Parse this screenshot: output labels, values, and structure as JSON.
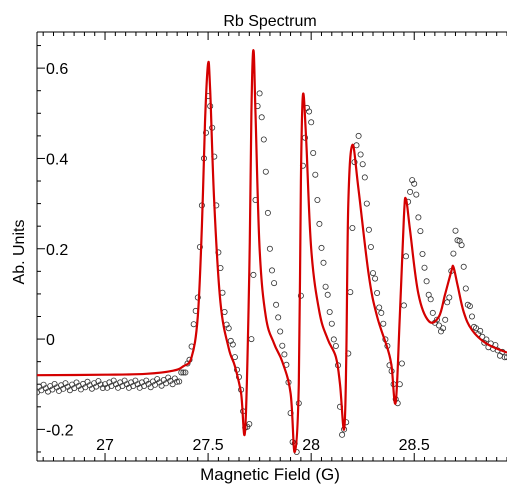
{
  "chart_data": {
    "type": "line",
    "title": "Rb Spectrum",
    "xlabel": "Magnetic Field (G)",
    "ylabel": "Ab. Units",
    "xlim": [
      26.67,
      28.95
    ],
    "ylim": [
      -0.27,
      0.68
    ],
    "x_ticks": [
      27,
      27.5,
      28,
      28.5
    ],
    "y_ticks": [
      -0.2,
      0,
      0.2,
      0.4,
      0.6
    ],
    "grid": false,
    "colors": {
      "fit": "#d40000",
      "data": "#333333"
    },
    "series": [
      {
        "style": "line",
        "color": "#d40000",
        "x": [
          26.67,
          27.0,
          27.2,
          27.33,
          27.38,
          27.42,
          27.45,
          27.47,
          27.485,
          27.5,
          27.51,
          27.53,
          27.56,
          27.6,
          27.63,
          27.66,
          27.68,
          27.7,
          27.71,
          27.72,
          27.73,
          27.75,
          27.78,
          27.82,
          27.86,
          27.9,
          27.92,
          27.94,
          27.95,
          27.96,
          27.975,
          28.0,
          28.04,
          28.08,
          28.12,
          28.14,
          28.16,
          28.17,
          28.18,
          28.2,
          28.23,
          28.28,
          28.32,
          28.37,
          28.39,
          28.41,
          28.43,
          28.45,
          28.46,
          28.48,
          28.52,
          28.57,
          28.62,
          28.65,
          28.68,
          28.69,
          28.71,
          28.74,
          28.78,
          28.85,
          28.95
        ],
        "y": [
          -0.08,
          -0.079,
          -0.077,
          -0.07,
          -0.06,
          -0.04,
          0.05,
          0.25,
          0.48,
          0.61,
          0.55,
          0.3,
          0.08,
          -0.02,
          -0.06,
          -0.12,
          -0.2,
          0.15,
          0.5,
          0.64,
          0.5,
          0.2,
          0.05,
          -0.01,
          -0.05,
          -0.12,
          -0.25,
          -0.1,
          0.35,
          0.54,
          0.45,
          0.2,
          0.06,
          0.0,
          -0.04,
          -0.1,
          -0.2,
          -0.05,
          0.3,
          0.43,
          0.33,
          0.14,
          0.05,
          -0.02,
          -0.06,
          -0.14,
          0.05,
          0.27,
          0.31,
          0.24,
          0.1,
          0.04,
          0.05,
          0.1,
          0.15,
          0.16,
          0.12,
          0.06,
          0.02,
          -0.01,
          -0.03
        ]
      },
      {
        "style": "markers",
        "marker": "open-circle",
        "color": "#333333",
        "x": [
          26.67,
          27.0,
          27.2,
          27.36,
          27.41,
          27.45,
          27.48,
          27.5,
          27.51,
          27.53,
          27.55,
          27.58,
          27.62,
          27.65,
          27.68,
          27.7,
          27.71,
          27.73,
          27.74,
          27.75,
          27.77,
          27.8,
          27.84,
          27.87,
          27.89,
          27.91,
          27.93,
          27.94,
          27.95,
          27.96,
          27.98,
          28.0,
          28.03,
          28.07,
          28.1,
          28.13,
          28.14,
          28.15,
          28.17,
          28.19,
          28.21,
          28.23,
          28.26,
          28.3,
          28.35,
          28.38,
          28.4,
          28.42,
          28.44,
          28.47,
          28.49,
          28.51,
          28.55,
          28.6,
          28.64,
          28.67,
          28.7,
          28.73,
          28.76,
          28.8,
          28.86,
          28.95
        ],
        "y": [
          -0.11,
          -0.1,
          -0.1,
          -0.09,
          -0.05,
          0.1,
          0.4,
          0.53,
          0.52,
          0.4,
          0.2,
          0.06,
          -0.02,
          -0.08,
          -0.2,
          -0.18,
          0.0,
          0.3,
          0.52,
          0.54,
          0.45,
          0.2,
          0.04,
          -0.03,
          -0.1,
          -0.22,
          -0.25,
          -0.15,
          0.1,
          0.38,
          0.52,
          0.48,
          0.3,
          0.12,
          0.03,
          -0.05,
          -0.15,
          -0.22,
          -0.18,
          0.1,
          0.4,
          0.45,
          0.35,
          0.15,
          0.03,
          -0.05,
          -0.1,
          -0.15,
          -0.05,
          0.3,
          0.36,
          0.32,
          0.15,
          0.04,
          0.02,
          0.1,
          0.24,
          0.2,
          0.08,
          0.02,
          -0.01,
          -0.04
        ]
      }
    ]
  }
}
